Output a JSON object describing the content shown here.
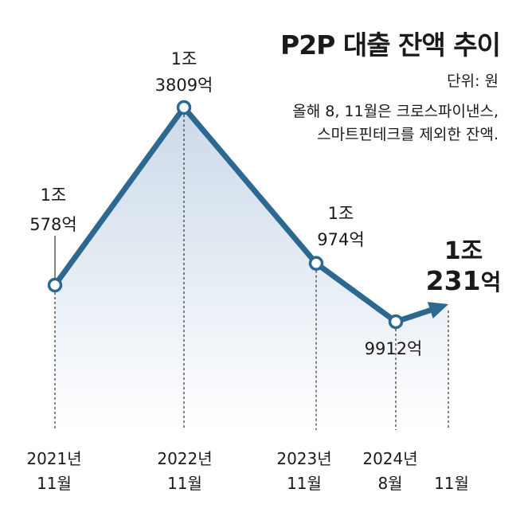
{
  "header": {
    "title": "P2P 대출 잔액 추이",
    "unit": "단위: 원",
    "note_lines": [
      "올해 8, 11월은 크로스파이낸스,",
      "스마트핀테크를 제외한 잔액."
    ]
  },
  "chart_data": {
    "type": "area",
    "title": "P2P 대출 잔액 추이",
    "unit_label": "단위: 원",
    "y_unit": "억원",
    "ylim": [
      0,
      15000
    ],
    "grid": false,
    "legend": "none",
    "points": [
      {
        "x_line1": "2021년",
        "x_line2": "11월",
        "value": 10578,
        "label_line1": "1조",
        "label_line2": "578억"
      },
      {
        "x_line1": "2022년",
        "x_line2": "11월",
        "value": 13809,
        "label_line1": "1조",
        "label_line2": "3809억"
      },
      {
        "x_line1": "2023년",
        "x_line2": "11월",
        "value": 10974,
        "label_line1": "1조",
        "label_line2": "974억"
      },
      {
        "x_line1": "2024년",
        "x_line2": "8월",
        "value": 9912,
        "label_line1": "",
        "label_line2": "9912억"
      },
      {
        "x_line1": "",
        "x_line2": "11월",
        "value": 10231,
        "label_line1": "1조",
        "label_line2": "231억",
        "highlight": true
      }
    ],
    "colors": {
      "line": "#2d6891",
      "area_top": "#c9d8e8",
      "area_bottom": "#ffffff",
      "marker_fill": "#ffffff"
    }
  }
}
